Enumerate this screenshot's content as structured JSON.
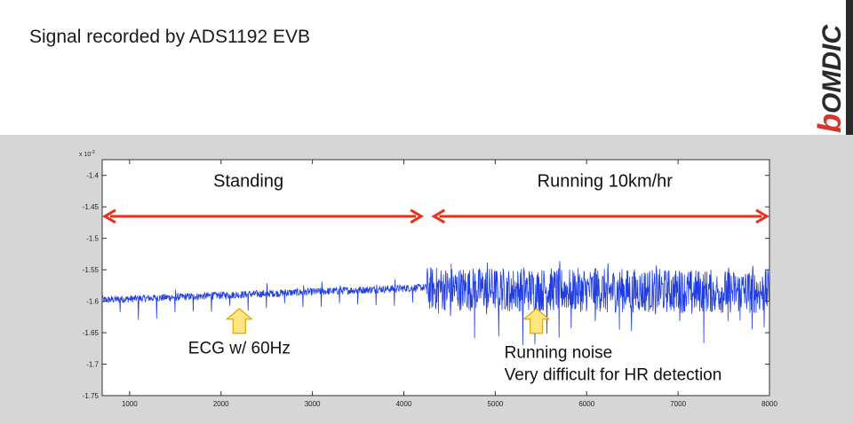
{
  "slide": {
    "title": "Signal recorded by ADS1192 EVB",
    "logo_text": "bOMDIC",
    "colors": {
      "background": "#ffffff",
      "band": "#d6d6d6",
      "logo_red": "#d9342b",
      "logo_dark": "#2a2a2a"
    }
  },
  "chart_data": {
    "type": "line",
    "title": "",
    "xlabel": "",
    "ylabel": "",
    "y_exponent_label": "x 10",
    "y_exponent_power": "-3",
    "xlim": [
      700,
      8000
    ],
    "ylim": [
      -1.75,
      -1.375
    ],
    "x_ticks": [
      1000,
      2000,
      3000,
      4000,
      5000,
      6000,
      7000,
      8000
    ],
    "x_tick_labels": [
      "1000",
      "2000",
      "3000",
      "4000",
      "5000",
      "6000",
      "7000",
      "8000"
    ],
    "y_ticks": [
      -1.4,
      -1.45,
      -1.5,
      -1.55,
      -1.6,
      -1.65,
      -1.7,
      -1.75
    ],
    "y_tick_labels": [
      "-1.4",
      "-1.45",
      "-1.5",
      "-1.55",
      "-1.6",
      "-1.65",
      "-1.7",
      "-1.75"
    ],
    "grid": false,
    "line_color": "#1f3de0",
    "series": [
      {
        "segments": [
          {
            "x_start": 700,
            "x_end": 4250,
            "baseline_start": -1.598,
            "baseline_end": -1.578,
            "noise_amplitude": 0.006,
            "spike_depth": 0.03,
            "spike_period": 200
          },
          {
            "x_start": 4250,
            "x_end": 8000,
            "baseline_start": -1.58,
            "baseline_end": -1.585,
            "noise_amplitude": 0.035,
            "spike_depth": 0.06,
            "spike_period": 130
          }
        ]
      }
    ],
    "annotations": [
      {
        "kind": "label",
        "text": "Standing",
        "x": 2300,
        "y": -1.418
      },
      {
        "kind": "label",
        "text": "Running 10km/hr",
        "x": 6200,
        "y": -1.418
      },
      {
        "kind": "double-arrow",
        "x1": 700,
        "x2": 4220,
        "y": -1.465,
        "color": "#e8321e"
      },
      {
        "kind": "double-arrow",
        "x1": 4300,
        "x2": 8000,
        "y": -1.465,
        "color": "#e8321e"
      },
      {
        "kind": "up-arrow",
        "x": 2200,
        "y": -1.62,
        "fill": "#ffe680",
        "stroke": "#d9a800"
      },
      {
        "kind": "up-arrow",
        "x": 5450,
        "y": -1.62,
        "fill": "#ffe680",
        "stroke": "#d9a800"
      },
      {
        "kind": "label",
        "text": "ECG w/ 60Hz",
        "x": 2200,
        "y": -1.683
      },
      {
        "kind": "label",
        "text": "Running noise",
        "x": 5100,
        "y": -1.69
      },
      {
        "kind": "label",
        "text": "Very difficult for HR detection",
        "x": 5100,
        "y": -1.725
      }
    ]
  }
}
